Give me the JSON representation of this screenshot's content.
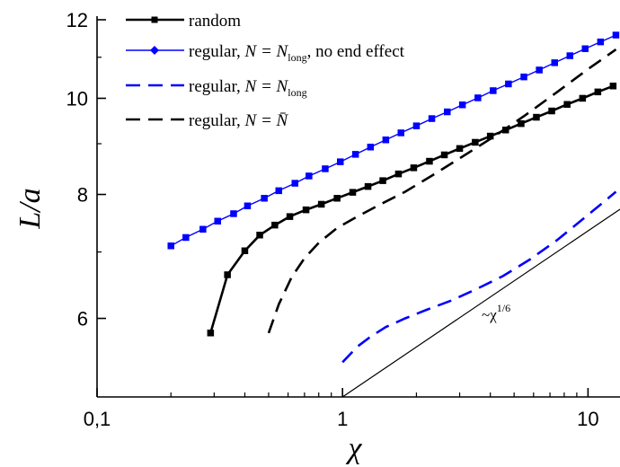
{
  "chart_data": {
    "type": "line",
    "xscale": "log",
    "yscale": "log",
    "xlim": [
      0.1,
      13.5
    ],
    "ylim": [
      5.0,
      12.0
    ],
    "xlabel": "χ",
    "ylabel": "L/a",
    "xticks": [
      0.1,
      1,
      10
    ],
    "xtick_labels": [
      "0,1",
      "1",
      "10"
    ],
    "yticks": [
      6,
      8,
      10,
      12
    ],
    "ytick_labels": [
      "6",
      "8",
      "10",
      "12"
    ],
    "grid": false,
    "legend_position": "top-left",
    "annotation": {
      "text": "~χ",
      "sup": "1/6"
    },
    "legend_parts": [
      {
        "main": "random",
        "italic": "",
        "eq": "",
        "sub": "",
        "rest": ""
      },
      {
        "main": "regular, ",
        "italic": "N",
        "eq": " = N",
        "sub": "long",
        "rest": ", no end effect"
      },
      {
        "main": "regular, ",
        "italic": "N",
        "eq": " = N",
        "sub": "long",
        "rest": ""
      },
      {
        "main": "regular, ",
        "italic": "N",
        "eq": " = N̄",
        "sub": "",
        "rest": ""
      }
    ],
    "series": [
      {
        "color": "#000000",
        "style": "solid",
        "marker": "square",
        "x": [
          0.29,
          0.34,
          0.4,
          0.46,
          0.53,
          0.61,
          0.71,
          0.82,
          0.95,
          1.1,
          1.27,
          1.46,
          1.69,
          1.95,
          2.26,
          2.6,
          3.0,
          3.47,
          4.0,
          4.62,
          5.34,
          6.16,
          7.12,
          8.22,
          9.5,
          10.97,
          12.66
        ],
        "y": [
          5.8,
          6.64,
          7.02,
          7.28,
          7.45,
          7.6,
          7.72,
          7.82,
          7.93,
          8.04,
          8.15,
          8.26,
          8.39,
          8.51,
          8.64,
          8.77,
          8.9,
          9.03,
          9.16,
          9.29,
          9.43,
          9.57,
          9.71,
          9.86,
          10.0,
          10.15,
          10.29
        ]
      },
      {
        "color": "#0000ff",
        "style": "solid",
        "marker": "square",
        "x": [
          0.2,
          0.23,
          0.27,
          0.31,
          0.36,
          0.41,
          0.48,
          0.55,
          0.64,
          0.73,
          0.85,
          0.98,
          1.13,
          1.3,
          1.5,
          1.73,
          2.0,
          2.31,
          2.67,
          3.08,
          3.56,
          4.11,
          4.74,
          5.48,
          6.33,
          7.31,
          8.44,
          9.74,
          11.25,
          12.99
        ],
        "y": [
          7.1,
          7.24,
          7.38,
          7.52,
          7.65,
          7.79,
          7.93,
          8.07,
          8.21,
          8.35,
          8.49,
          8.63,
          8.78,
          8.93,
          9.08,
          9.23,
          9.38,
          9.54,
          9.69,
          9.85,
          10.01,
          10.18,
          10.34,
          10.51,
          10.68,
          10.86,
          11.04,
          11.22,
          11.4,
          11.58
        ]
      },
      {
        "color": "#0000ff",
        "style": "dashed",
        "marker": "none",
        "x": [
          1.0,
          1.15,
          1.3,
          1.5,
          1.8,
          2.2,
          2.8,
          3.5,
          4.5,
          5.8,
          7.5,
          9.5,
          11.5,
          13.0
        ],
        "y": [
          5.42,
          5.62,
          5.75,
          5.88,
          6.0,
          6.12,
          6.26,
          6.42,
          6.62,
          6.88,
          7.2,
          7.55,
          7.85,
          8.05
        ]
      },
      {
        "color": "#000000",
        "style": "dashed",
        "marker": "none",
        "x": [
          0.5,
          0.55,
          0.62,
          0.7,
          0.8,
          0.95,
          1.15,
          1.4,
          1.8,
          2.3,
          3.0,
          4.0,
          5.5,
          7.5,
          10.0,
          13.0
        ],
        "y": [
          5.8,
          6.2,
          6.6,
          6.9,
          7.15,
          7.4,
          7.6,
          7.8,
          8.05,
          8.35,
          8.7,
          9.1,
          9.6,
          10.15,
          10.7,
          11.2
        ]
      },
      {
        "color": "#000000",
        "style": "thin",
        "marker": "none",
        "x": [
          1.0,
          13.5
        ],
        "y": [
          5.0,
          7.73
        ]
      }
    ]
  }
}
